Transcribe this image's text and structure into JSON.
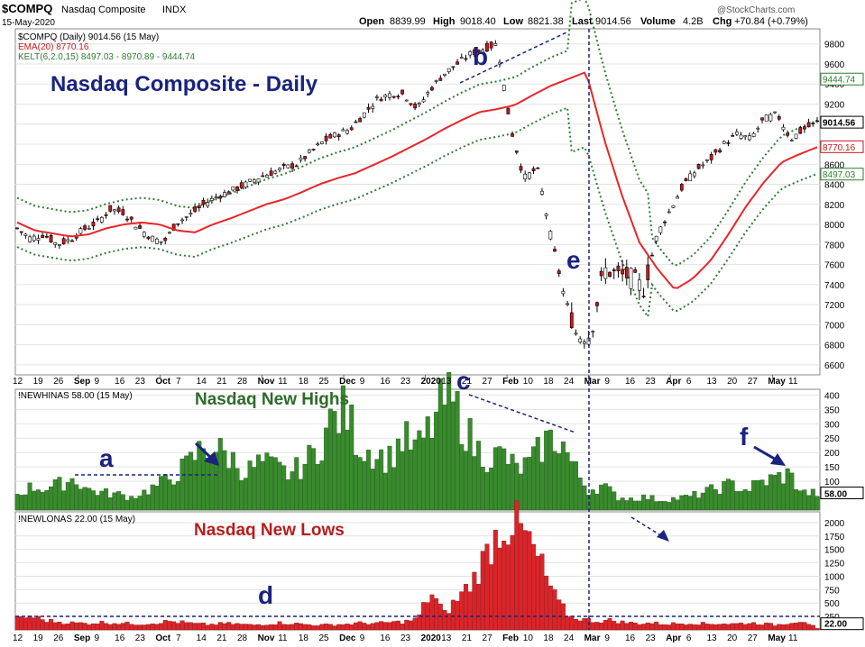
{
  "header": {
    "symbol": "$COMPQ",
    "name": "Nasdaq Composite",
    "exchange": "INDX",
    "date": "15-May-2020",
    "open_label": "Open",
    "open": "8839.99",
    "high_label": "High",
    "high": "9018.40",
    "low_label": "Low",
    "low": "8821.38",
    "last_label": "Last",
    "last": "9014.56",
    "volume_label": "Volume",
    "volume": "4.2B",
    "chg_label": "Chg",
    "chg": "+70.84 (+0.79%)",
    "watermark": "@StockCharts.com"
  },
  "colors": {
    "price_up": "#ffffff",
    "price_down": "#c8161d",
    "ema": "#e8262a",
    "kelt": "#2e7d32",
    "highs": "#3a8a2e",
    "lows": "#d9252a",
    "annotation": "#1a237e",
    "grid": "#e3e3e3"
  },
  "chart_data": [
    {
      "type": "line",
      "panel": "price",
      "legend": [
        "$COMPQ (Daily) 9014.56 (15 May)",
        "EMA(20) 8770.16",
        "KELT(6,2.0,15) 8497.03 - 8970.89 - 9444.74"
      ],
      "title": "Nasdaq Composite - Daily",
      "ylim": [
        6500,
        9950
      ],
      "y_ticks": [
        6600,
        6800,
        7000,
        7200,
        7400,
        7600,
        7800,
        8000,
        8200,
        8400,
        8600,
        8800,
        9000,
        9200,
        9400,
        9600,
        9800
      ],
      "right_badges": [
        "9444.74",
        "9014.56",
        "8770.16",
        "8497.03"
      ],
      "x_ticks": [
        "12",
        "19",
        "26",
        "Sep",
        "9",
        "16",
        "23",
        "Oct",
        "7",
        "14",
        "21",
        "28",
        "Nov",
        "11",
        "18",
        "25",
        "Dec",
        "9",
        "16",
        "23",
        "2020",
        "13",
        "21",
        "27",
        "Feb",
        "10",
        "18",
        "24",
        "Mar",
        "9",
        "16",
        "23",
        "Apr",
        "6",
        "13",
        "20",
        "27",
        "May",
        "11"
      ],
      "series": [
        {
          "name": "$COMPQ",
          "anchor_values": [
            7960,
            7860,
            7900,
            7800,
            7850,
            7950,
            8020,
            8150,
            8120,
            7980,
            7870,
            7820,
            8020,
            8100,
            8200,
            8280,
            8330,
            8390,
            8460,
            8510,
            8560,
            8600,
            8720,
            8830,
            8900,
            8950,
            9100,
            9250,
            9300,
            9300,
            9150,
            9350,
            9500,
            9600,
            9700,
            9750,
            9800,
            8970,
            8460,
            8560,
            7900,
            7300,
            6880,
            6900,
            7550,
            7500,
            7480,
            7350,
            7900,
            8150,
            8400,
            8550,
            8650,
            8800,
            8900,
            8850,
            9050,
            9100,
            8850,
            8950,
            9014
          ]
        },
        {
          "name": "EMA(20)",
          "anchor_values": [
            8020,
            7940,
            7910,
            7880,
            7900,
            7960,
            8000,
            8020,
            8000,
            7940,
            7920,
            8000,
            8060,
            8130,
            8200,
            8250,
            8320,
            8400,
            8460,
            8510,
            8590,
            8670,
            8760,
            8850,
            8950,
            9040,
            9120,
            9150,
            9190,
            9290,
            9380,
            9450,
            9520,
            8860,
            8300,
            7820,
            7560,
            7350,
            7460,
            7640,
            7900,
            8180,
            8420,
            8620,
            8700,
            8770
          ]
        }
      ]
    },
    {
      "type": "bar",
      "panel": "new_highs",
      "legend": "!NEWHINAS 58.00 (15 May)",
      "title": "Nasdaq New Highs",
      "ylim": [
        0,
        420
      ],
      "y_ticks": [
        50,
        100,
        150,
        200,
        250,
        300,
        350,
        400
      ],
      "last_value_badge": "58.00",
      "anchor_values": [
        55,
        80,
        75,
        90,
        110,
        70,
        60,
        55,
        45,
        65,
        90,
        120,
        160,
        220,
        210,
        180,
        130,
        165,
        150,
        125,
        155,
        210,
        310,
        345,
        220,
        200,
        175,
        250,
        210,
        290,
        390,
        330,
        220,
        180,
        195,
        140,
        165,
        240,
        250,
        145,
        70,
        85,
        45,
        40,
        45,
        35,
        40,
        45,
        60,
        75,
        90,
        70,
        95,
        110,
        125,
        60,
        58
      ]
    },
    {
      "type": "bar",
      "panel": "new_lows",
      "legend": "!NEWLONAS 22.00 (15 May)",
      "title": "Nasdaq New Lows",
      "ylim": [
        0,
        2200
      ],
      "y_ticks": [
        250,
        500,
        750,
        1000,
        1250,
        1500,
        1750,
        2000
      ],
      "last_value_badge": "22.00",
      "anchor_values": [
        200,
        260,
        180,
        150,
        130,
        120,
        140,
        130,
        120,
        110,
        130,
        160,
        140,
        110,
        100,
        120,
        110,
        90,
        110,
        130,
        120,
        100,
        90,
        100,
        110,
        130,
        120,
        140,
        150,
        200,
        700,
        300,
        600,
        900,
        1400,
        1900,
        2000,
        1700,
        1200,
        600,
        250,
        200,
        160,
        180,
        140,
        120,
        130,
        110,
        120,
        130,
        110,
        120,
        110,
        130,
        120,
        90,
        140,
        180,
        22
      ]
    }
  ],
  "annotations": {
    "a": "a",
    "b": "b",
    "c": "c",
    "d": "d",
    "e": "e",
    "f": "f"
  }
}
